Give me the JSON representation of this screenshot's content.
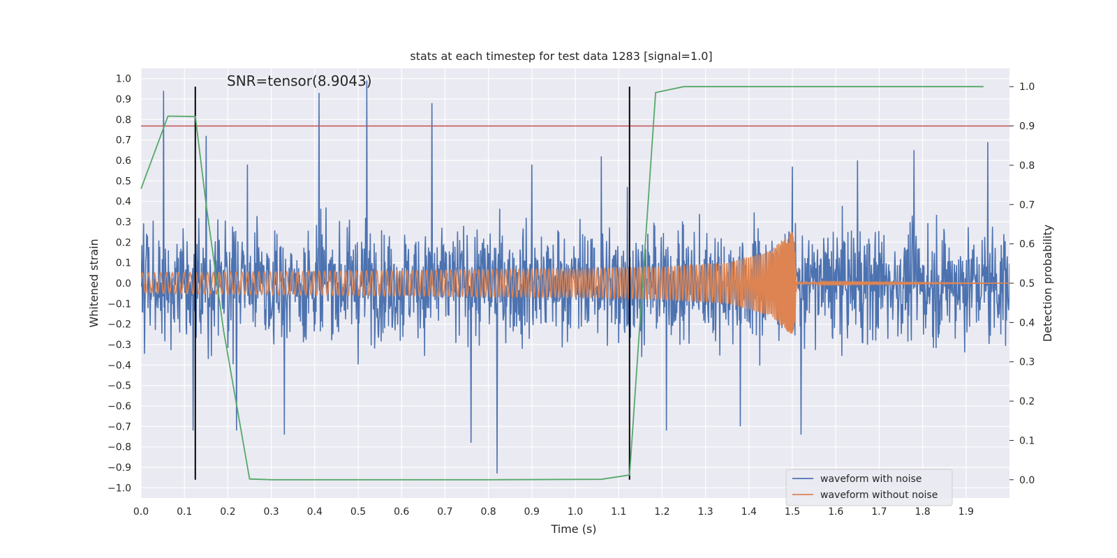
{
  "chart_data": {
    "type": "line",
    "title": "stats at each timestep for test data 1283 [signal=1.0]",
    "annotation": "SNR=tensor(8.9043)",
    "xlabel": "Time (s)",
    "ylabel": "Whitened strain",
    "y2label": "Detection probability",
    "xlim": [
      0.0,
      2.0
    ],
    "ylim": [
      -1.05,
      1.05
    ],
    "y2lim": [
      -0.0465,
      1.0465
    ],
    "x_ticks": [
      "0.0",
      "0.1",
      "0.2",
      "0.3",
      "0.4",
      "0.5",
      "0.6",
      "0.7",
      "0.8",
      "0.9",
      "1.0",
      "1.1",
      "1.2",
      "1.3",
      "1.4",
      "1.5",
      "1.6",
      "1.7",
      "1.8",
      "1.9"
    ],
    "y_ticks": [
      "1.0",
      "0.9",
      "0.8",
      "0.7",
      "0.6",
      "0.5",
      "0.4",
      "0.3",
      "0.2",
      "0.1",
      "0.0",
      "−0.1",
      "−0.2",
      "−0.3",
      "−0.4",
      "−0.5",
      "−0.6",
      "−0.7",
      "−0.8",
      "−0.9",
      "−1.0"
    ],
    "y2_ticks": [
      "1.0",
      "0.9",
      "0.8",
      "0.7",
      "0.6",
      "0.5",
      "0.4",
      "0.3",
      "0.2",
      "0.1",
      "0.0"
    ],
    "grid": true,
    "legend_position": "lower-right",
    "colors": {
      "background": "#eaeaf2",
      "grid": "#ffffff",
      "noisy": "#4c72b0",
      "clean": "#dd8452",
      "probability": "#55a868",
      "threshold": "#c44e52",
      "markers": "#000000"
    },
    "series": [
      {
        "name": "waveform with noise",
        "description_points": {
          "x": [
            0.0,
            0.052,
            0.12,
            0.15,
            0.22,
            0.245,
            0.33,
            0.41,
            0.52,
            0.67,
            0.76,
            0.82,
            0.9,
            1.06,
            1.12,
            1.21,
            1.38,
            1.5,
            1.52,
            1.65,
            1.78,
            1.95
          ],
          "y": [
            0.1,
            0.94,
            -0.72,
            0.72,
            -0.72,
            0.58,
            -0.74,
            0.93,
            1.0,
            0.88,
            -0.78,
            -0.93,
            0.58,
            0.62,
            0.47,
            -0.72,
            -0.7,
            0.57,
            -0.74,
            0.6,
            0.65,
            0.69
          ]
        }
      },
      {
        "name": "waveform without noise",
        "envelope": {
          "x": [
            0.0,
            0.5,
            1.0,
            1.2,
            1.35,
            1.45,
            1.5,
            1.505,
            1.51,
            2.0
          ],
          "amplitude": [
            0.05,
            0.06,
            0.07,
            0.08,
            0.1,
            0.16,
            0.26,
            0.2,
            0.005,
            0.0
          ]
        }
      },
      {
        "name": "detection probability",
        "axis": "right",
        "x": [
          0.0,
          0.062,
          0.125,
          0.15,
          0.19,
          0.25,
          0.3,
          0.5,
          0.8,
          1.06,
          1.125,
          1.185,
          1.25,
          1.5,
          1.94
        ],
        "y": [
          0.74,
          0.925,
          0.924,
          0.7,
          0.38,
          0.002,
          0.0,
          0.0,
          0.0,
          0.001,
          0.012,
          0.985,
          1.0,
          1.0,
          1.0
        ]
      }
    ],
    "threshold": {
      "axis": "right",
      "value": 0.9
    },
    "markers_x": [
      0.125,
      1.125
    ],
    "legend": [
      "waveform with noise",
      "waveform without noise"
    ]
  }
}
